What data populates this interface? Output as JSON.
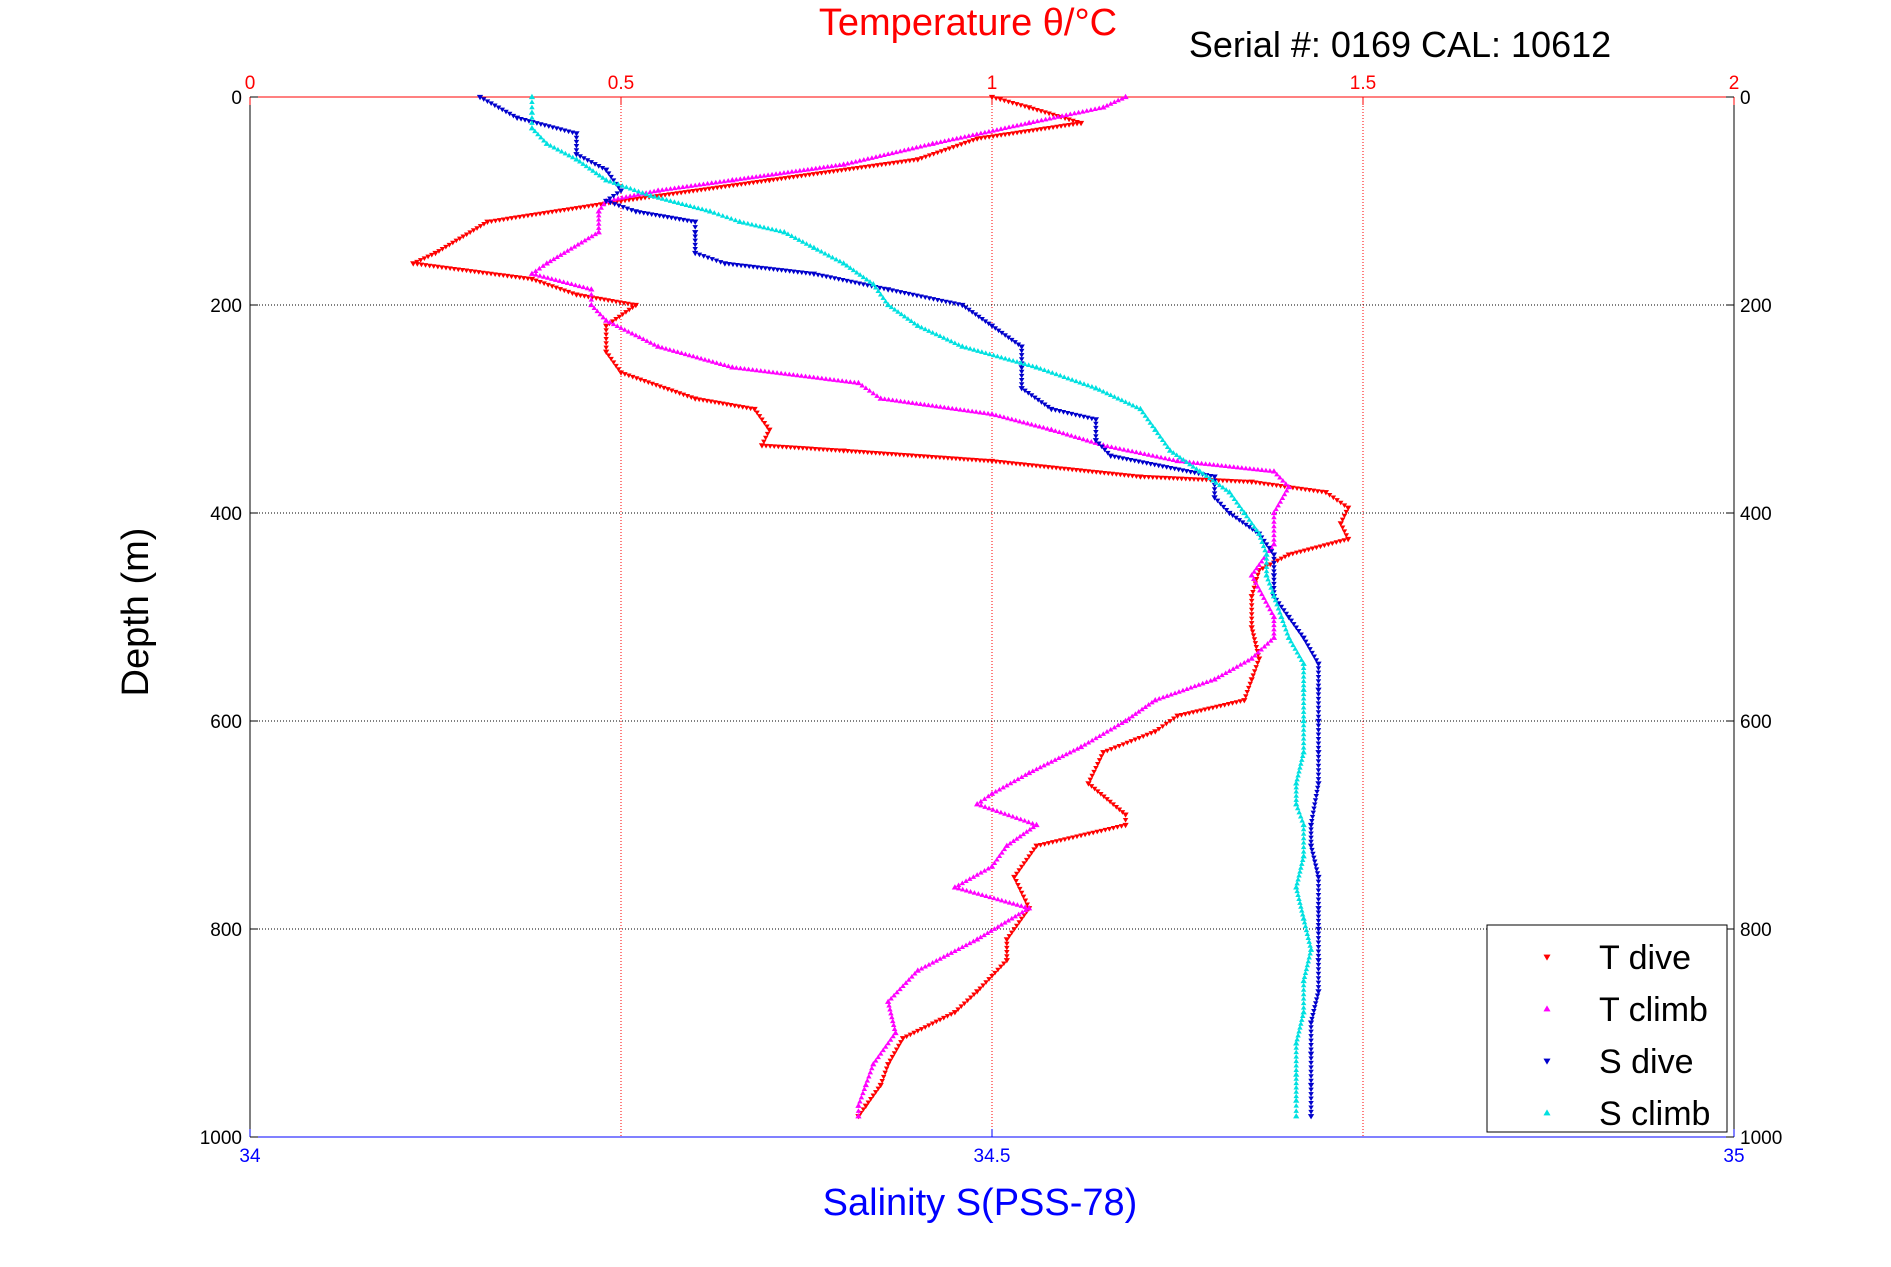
{
  "chart_data": {
    "type": "scatter",
    "header_text": "Serial #: 0169 CAL: 10612",
    "top_axis": {
      "label": "Temperature θ/°C",
      "range": [
        0,
        2
      ],
      "ticks": [
        "0",
        "0.5",
        "1",
        "1.5",
        "2"
      ],
      "tick_values": [
        0,
        0.5,
        1,
        1.5,
        2
      ],
      "color": "#ff0000"
    },
    "bottom_axis": {
      "label": "Salinity S(PSS-78)",
      "range": [
        34,
        35
      ],
      "ticks": [
        "34",
        "34.5",
        "35"
      ],
      "tick_values": [
        34,
        34.5,
        35
      ],
      "color": "#0000ff"
    },
    "y_axis": {
      "label": "Depth (m)",
      "range": [
        0,
        1000
      ],
      "reversed": true,
      "ticks": [
        "0",
        "200",
        "400",
        "600",
        "800",
        "1000"
      ],
      "tick_values": [
        0,
        200,
        400,
        600,
        800,
        1000
      ]
    },
    "grid": true,
    "legend_position": "bottom-right",
    "series": [
      {
        "name": "T dive",
        "axis": "temperature",
        "color": "#ff0000",
        "marker": "triangle-down",
        "points": [
          [
            1.0,
            0
          ],
          [
            1.05,
            10
          ],
          [
            1.12,
            25
          ],
          [
            0.98,
            40
          ],
          [
            0.9,
            60
          ],
          [
            0.7,
            80
          ],
          [
            0.5,
            100
          ],
          [
            0.32,
            120
          ],
          [
            0.25,
            150
          ],
          [
            0.22,
            160
          ],
          [
            0.38,
            175
          ],
          [
            0.44,
            190
          ],
          [
            0.52,
            200
          ],
          [
            0.48,
            220
          ],
          [
            0.48,
            245
          ],
          [
            0.5,
            265
          ],
          [
            0.6,
            290
          ],
          [
            0.68,
            300
          ],
          [
            0.7,
            320
          ],
          [
            0.69,
            335
          ],
          [
            0.8,
            340
          ],
          [
            1.0,
            350
          ],
          [
            1.2,
            365
          ],
          [
            1.35,
            370
          ],
          [
            1.45,
            380
          ],
          [
            1.48,
            395
          ],
          [
            1.47,
            410
          ],
          [
            1.48,
            425
          ],
          [
            1.4,
            440
          ],
          [
            1.36,
            455
          ],
          [
            1.35,
            480
          ],
          [
            1.35,
            510
          ],
          [
            1.36,
            540
          ],
          [
            1.35,
            560
          ],
          [
            1.34,
            580
          ],
          [
            1.25,
            595
          ],
          [
            1.22,
            610
          ],
          [
            1.15,
            630
          ],
          [
            1.13,
            660
          ],
          [
            1.18,
            690
          ],
          [
            1.18,
            700
          ],
          [
            1.06,
            720
          ],
          [
            1.03,
            750
          ],
          [
            1.05,
            780
          ],
          [
            1.02,
            810
          ],
          [
            1.02,
            830
          ],
          [
            0.98,
            860
          ],
          [
            0.95,
            880
          ],
          [
            0.88,
            905
          ],
          [
            0.86,
            930
          ],
          [
            0.85,
            950
          ],
          [
            0.83,
            970
          ],
          [
            0.82,
            980
          ]
        ]
      },
      {
        "name": "T climb",
        "axis": "temperature",
        "color": "#ff00ff",
        "marker": "triangle-up",
        "points": [
          [
            1.18,
            0
          ],
          [
            1.15,
            10
          ],
          [
            1.05,
            25
          ],
          [
            0.92,
            45
          ],
          [
            0.8,
            65
          ],
          [
            0.65,
            80
          ],
          [
            0.55,
            90
          ],
          [
            0.48,
            100
          ],
          [
            0.47,
            110
          ],
          [
            0.47,
            130
          ],
          [
            0.4,
            160
          ],
          [
            0.38,
            170
          ],
          [
            0.46,
            185
          ],
          [
            0.46,
            200
          ],
          [
            0.48,
            215
          ],
          [
            0.55,
            240
          ],
          [
            0.65,
            260
          ],
          [
            0.82,
            275
          ],
          [
            0.85,
            290
          ],
          [
            1.0,
            305
          ],
          [
            1.08,
            320
          ],
          [
            1.15,
            335
          ],
          [
            1.25,
            350
          ],
          [
            1.38,
            360
          ],
          [
            1.4,
            375
          ],
          [
            1.38,
            400
          ],
          [
            1.38,
            430
          ],
          [
            1.35,
            460
          ],
          [
            1.38,
            500
          ],
          [
            1.38,
            520
          ],
          [
            1.35,
            540
          ],
          [
            1.3,
            560
          ],
          [
            1.22,
            580
          ],
          [
            1.18,
            600
          ],
          [
            1.12,
            625
          ],
          [
            1.05,
            650
          ],
          [
            1.0,
            670
          ],
          [
            0.98,
            680
          ],
          [
            1.06,
            700
          ],
          [
            1.02,
            720
          ],
          [
            1.0,
            740
          ],
          [
            0.95,
            760
          ],
          [
            1.05,
            780
          ],
          [
            0.98,
            810
          ],
          [
            0.9,
            840
          ],
          [
            0.86,
            870
          ],
          [
            0.87,
            900
          ],
          [
            0.84,
            930
          ],
          [
            0.83,
            950
          ],
          [
            0.82,
            970
          ],
          [
            0.82,
            980
          ]
        ]
      },
      {
        "name": "S dive",
        "axis": "salinity",
        "color": "#0000cc",
        "marker": "triangle-down",
        "points": [
          [
            34.155,
            0
          ],
          [
            34.18,
            20
          ],
          [
            34.22,
            35
          ],
          [
            34.22,
            55
          ],
          [
            34.24,
            70
          ],
          [
            34.25,
            90
          ],
          [
            34.24,
            100
          ],
          [
            34.26,
            110
          ],
          [
            34.3,
            120
          ],
          [
            34.3,
            130
          ],
          [
            34.3,
            150
          ],
          [
            34.32,
            160
          ],
          [
            34.38,
            170
          ],
          [
            34.43,
            185
          ],
          [
            34.48,
            200
          ],
          [
            34.5,
            220
          ],
          [
            34.52,
            240
          ],
          [
            34.52,
            260
          ],
          [
            34.52,
            280
          ],
          [
            34.54,
            300
          ],
          [
            34.57,
            310
          ],
          [
            34.57,
            330
          ],
          [
            34.58,
            345
          ],
          [
            34.65,
            365
          ],
          [
            34.65,
            385
          ],
          [
            34.66,
            400
          ],
          [
            34.68,
            420
          ],
          [
            34.69,
            440
          ],
          [
            34.69,
            460
          ],
          [
            34.69,
            480
          ],
          [
            34.7,
            500
          ],
          [
            34.71,
            520
          ],
          [
            34.72,
            545
          ],
          [
            34.72,
            570
          ],
          [
            34.72,
            600
          ],
          [
            34.72,
            630
          ],
          [
            34.72,
            660
          ],
          [
            34.715,
            700
          ],
          [
            34.715,
            720
          ],
          [
            34.72,
            750
          ],
          [
            34.72,
            780
          ],
          [
            34.72,
            800
          ],
          [
            34.72,
            830
          ],
          [
            34.72,
            860
          ],
          [
            34.715,
            890
          ],
          [
            34.715,
            920
          ],
          [
            34.715,
            950
          ],
          [
            34.715,
            980
          ]
        ]
      },
      {
        "name": "S climb",
        "axis": "salinity",
        "color": "#00e0e0",
        "marker": "triangle-up",
        "points": [
          [
            34.19,
            0
          ],
          [
            34.19,
            15
          ],
          [
            34.19,
            30
          ],
          [
            34.2,
            45
          ],
          [
            34.22,
            60
          ],
          [
            34.24,
            80
          ],
          [
            34.27,
            95
          ],
          [
            34.31,
            110
          ],
          [
            34.33,
            120
          ],
          [
            34.36,
            130
          ],
          [
            34.38,
            145
          ],
          [
            34.4,
            160
          ],
          [
            34.42,
            180
          ],
          [
            34.43,
            200
          ],
          [
            34.45,
            220
          ],
          [
            34.48,
            240
          ],
          [
            34.53,
            260
          ],
          [
            34.57,
            280
          ],
          [
            34.6,
            300
          ],
          [
            34.61,
            320
          ],
          [
            34.62,
            340
          ],
          [
            34.64,
            360
          ],
          [
            34.66,
            380
          ],
          [
            34.67,
            400
          ],
          [
            34.68,
            420
          ],
          [
            34.685,
            440
          ],
          [
            34.685,
            460
          ],
          [
            34.69,
            480
          ],
          [
            34.695,
            500
          ],
          [
            34.7,
            520
          ],
          [
            34.71,
            545
          ],
          [
            34.71,
            570
          ],
          [
            34.71,
            600
          ],
          [
            34.71,
            630
          ],
          [
            34.705,
            660
          ],
          [
            34.705,
            680
          ],
          [
            34.71,
            700
          ],
          [
            34.71,
            730
          ],
          [
            34.705,
            760
          ],
          [
            34.71,
            790
          ],
          [
            34.715,
            820
          ],
          [
            34.71,
            850
          ],
          [
            34.71,
            880
          ],
          [
            34.705,
            910
          ],
          [
            34.705,
            940
          ],
          [
            34.705,
            965
          ],
          [
            34.705,
            980
          ]
        ]
      }
    ]
  }
}
